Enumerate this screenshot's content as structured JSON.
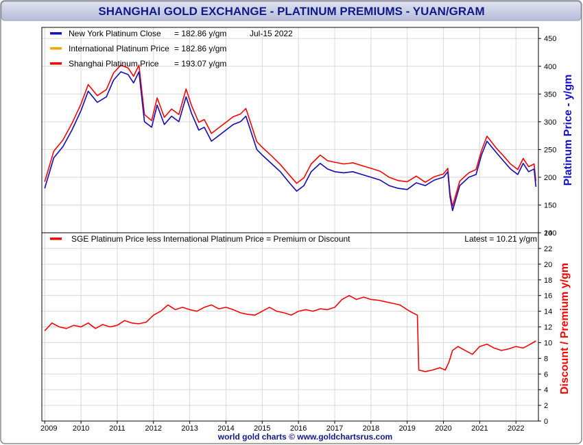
{
  "title": "SHANGHAI GOLD EXCHANGE - PLATINUM PREMIUMS - YUAN/GRAM",
  "footer": "world gold charts © www.goldchartsrus.com",
  "colors": {
    "title_bg": "#c9cde3",
    "title_text": "#0d1a8c",
    "ny": "#1010c8",
    "intl": "#f0a800",
    "sge": "#ff0000",
    "grid": "#d8d8d8"
  },
  "chart_data": [
    {
      "type": "line",
      "panel": "top",
      "ylabel": "Platinum Price - y/gm",
      "ylim": [
        100,
        470
      ],
      "yticks": [
        "100",
        "150",
        "200",
        "250",
        "300",
        "350",
        "400",
        "450"
      ],
      "xlabels": [
        "2009",
        "2010",
        "2011",
        "2012",
        "2013",
        "2014",
        "2015",
        "2016",
        "2017",
        "2018",
        "2019",
        "2020",
        "2021",
        "2022"
      ],
      "xlim": [
        2008.92,
        2022.62
      ],
      "legend": [
        {
          "label": "New York Platinum Close",
          "value": "= 182.86 y/gm",
          "date": "Jul-15  2022",
          "color": "#1010c8"
        },
        {
          "label": "International Platinum Price",
          "value": "= 182.86 y/gm",
          "color": "#f0a800"
        },
        {
          "label": "Shanghai Platinum Price",
          "value": "= 193.07 y/gm",
          "color": "#ff0000"
        }
      ],
      "series": [
        {
          "name": "New York Platinum Close",
          "x": [
            2009.0,
            2009.25,
            2009.5,
            2009.75,
            2010.0,
            2010.2,
            2010.45,
            2010.7,
            2010.9,
            2011.1,
            2011.3,
            2011.45,
            2011.6,
            2011.75,
            2011.95,
            2012.1,
            2012.3,
            2012.5,
            2012.7,
            2012.9,
            2013.05,
            2013.25,
            2013.4,
            2013.6,
            2013.8,
            2014.0,
            2014.2,
            2014.4,
            2014.55,
            2014.7,
            2014.85,
            2015.0,
            2015.25,
            2015.5,
            2015.75,
            2015.95,
            2016.15,
            2016.35,
            2016.6,
            2016.8,
            2017.0,
            2017.25,
            2017.5,
            2017.75,
            2018.0,
            2018.25,
            2018.5,
            2018.75,
            2019.0,
            2019.25,
            2019.5,
            2019.75,
            2020.0,
            2020.12,
            2020.18,
            2020.25,
            2020.45,
            2020.7,
            2020.9,
            2021.05,
            2021.2,
            2021.45,
            2021.65,
            2021.85,
            2022.05,
            2022.2,
            2022.35,
            2022.5,
            2022.55
          ],
          "values": [
            180,
            235,
            255,
            285,
            320,
            355,
            335,
            345,
            375,
            390,
            385,
            370,
            390,
            300,
            290,
            330,
            295,
            310,
            300,
            345,
            315,
            285,
            290,
            265,
            275,
            285,
            295,
            300,
            310,
            280,
            250,
            240,
            225,
            210,
            190,
            175,
            185,
            210,
            225,
            215,
            210,
            208,
            210,
            205,
            200,
            195,
            185,
            180,
            178,
            190,
            185,
            195,
            200,
            210,
            165,
            140,
            185,
            200,
            205,
            240,
            265,
            245,
            230,
            215,
            205,
            225,
            210,
            215,
            182.86
          ]
        },
        {
          "name": "International Platinum Price",
          "x": [
            2009.0,
            2009.25,
            2009.5,
            2009.75,
            2010.0,
            2010.2,
            2010.45,
            2010.7,
            2010.9,
            2011.1,
            2011.3,
            2011.45,
            2011.6,
            2011.75,
            2011.95,
            2012.1,
            2012.3,
            2012.5,
            2012.7,
            2012.9,
            2013.05,
            2013.25,
            2013.4,
            2013.6,
            2013.8,
            2014.0,
            2014.2,
            2014.4,
            2014.55,
            2014.7,
            2014.85,
            2015.0,
            2015.25,
            2015.5,
            2015.75,
            2015.95,
            2016.15,
            2016.35,
            2016.6,
            2016.8,
            2017.0,
            2017.25,
            2017.5,
            2017.75,
            2018.0,
            2018.25,
            2018.5,
            2018.75,
            2019.0,
            2019.25,
            2019.5,
            2019.75,
            2020.0,
            2020.12,
            2020.18,
            2020.25,
            2020.45,
            2020.7,
            2020.9,
            2021.05,
            2021.2,
            2021.45,
            2021.65,
            2021.85,
            2022.05,
            2022.2,
            2022.35,
            2022.5,
            2022.55
          ],
          "values": [
            180,
            235,
            255,
            285,
            320,
            355,
            335,
            345,
            375,
            390,
            385,
            370,
            390,
            300,
            290,
            330,
            295,
            310,
            300,
            345,
            315,
            285,
            290,
            265,
            275,
            285,
            295,
            300,
            310,
            280,
            250,
            240,
            225,
            210,
            190,
            175,
            185,
            210,
            225,
            215,
            210,
            208,
            210,
            205,
            200,
            195,
            185,
            180,
            178,
            190,
            185,
            195,
            200,
            210,
            165,
            140,
            185,
            200,
            205,
            240,
            265,
            245,
            230,
            215,
            205,
            225,
            210,
            215,
            182.86
          ]
        },
        {
          "name": "Shanghai Platinum Price",
          "x": [
            2009.0,
            2009.25,
            2009.5,
            2009.75,
            2010.0,
            2010.2,
            2010.45,
            2010.7,
            2010.9,
            2011.1,
            2011.3,
            2011.45,
            2011.6,
            2011.75,
            2011.95,
            2012.1,
            2012.3,
            2012.5,
            2012.7,
            2012.9,
            2013.05,
            2013.25,
            2013.4,
            2013.6,
            2013.8,
            2014.0,
            2014.2,
            2014.4,
            2014.55,
            2014.7,
            2014.85,
            2015.0,
            2015.25,
            2015.5,
            2015.75,
            2015.95,
            2016.15,
            2016.35,
            2016.6,
            2016.8,
            2017.0,
            2017.25,
            2017.5,
            2017.75,
            2018.0,
            2018.25,
            2018.5,
            2018.75,
            2019.0,
            2019.25,
            2019.5,
            2019.75,
            2020.0,
            2020.12,
            2020.18,
            2020.25,
            2020.45,
            2020.7,
            2020.9,
            2021.05,
            2021.2,
            2021.45,
            2021.65,
            2021.85,
            2022.05,
            2022.2,
            2022.35,
            2022.5,
            2022.55
          ],
          "values": [
            192,
            247,
            267,
            297,
            332,
            367,
            347,
            358,
            388,
            402,
            397,
            382,
            402,
            313,
            302,
            343,
            308,
            323,
            313,
            359,
            329,
            299,
            304,
            279,
            289,
            299,
            309,
            314,
            324,
            294,
            264,
            254,
            239,
            223,
            204,
            189,
            199,
            224,
            240,
            230,
            227,
            224,
            226,
            221,
            216,
            211,
            200,
            194,
            192,
            202,
            191,
            201,
            206,
            216,
            172,
            148,
            193,
            208,
            214,
            248,
            274,
            253,
            239,
            224,
            214,
            234,
            219,
            224,
            193.07
          ]
        }
      ]
    },
    {
      "type": "line",
      "panel": "bottom",
      "ylabel": "Discount / Premium y/gm",
      "ylim": [
        0,
        24
      ],
      "yticks": [
        "0",
        "2",
        "4",
        "6",
        "8",
        "10",
        "12",
        "14",
        "16",
        "18",
        "20",
        "22",
        "24"
      ],
      "xlim": [
        2008.92,
        2022.62
      ],
      "legend": [
        {
          "label": "SGE Platinum Price less International Platinum Price = Premium or Discount",
          "color": "#ff0000"
        }
      ],
      "latest": "Latest = 10.21 y/gm",
      "series": [
        {
          "name": "SGE Platinum Price less International Platinum Price = Premium or Discount",
          "x": [
            2009.0,
            2009.2,
            2009.4,
            2009.6,
            2009.8,
            2010.0,
            2010.2,
            2010.4,
            2010.6,
            2010.8,
            2011.0,
            2011.2,
            2011.4,
            2011.6,
            2011.8,
            2012.0,
            2012.2,
            2012.4,
            2012.6,
            2012.8,
            2013.0,
            2013.2,
            2013.4,
            2013.6,
            2013.8,
            2014.0,
            2014.2,
            2014.4,
            2014.6,
            2014.8,
            2015.0,
            2015.2,
            2015.4,
            2015.6,
            2015.8,
            2016.0,
            2016.2,
            2016.4,
            2016.6,
            2016.8,
            2017.0,
            2017.2,
            2017.4,
            2017.6,
            2017.8,
            2018.0,
            2018.2,
            2018.4,
            2018.6,
            2018.8,
            2019.0,
            2019.15,
            2019.28,
            2019.32,
            2019.5,
            2019.7,
            2019.9,
            2020.05,
            2020.15,
            2020.25,
            2020.4,
            2020.6,
            2020.8,
            2021.0,
            2021.2,
            2021.4,
            2021.6,
            2021.8,
            2022.0,
            2022.2,
            2022.4,
            2022.55
          ],
          "values": [
            11.5,
            12.5,
            12.0,
            11.8,
            12.2,
            12.0,
            12.5,
            11.8,
            12.3,
            12.0,
            12.2,
            12.8,
            12.5,
            12.4,
            12.6,
            13.5,
            14.0,
            14.8,
            14.2,
            14.5,
            14.2,
            14.0,
            14.5,
            14.8,
            14.3,
            14.5,
            14.2,
            13.8,
            13.6,
            13.5,
            14.0,
            14.5,
            14.0,
            13.8,
            13.5,
            14.0,
            14.2,
            14.0,
            14.3,
            14.2,
            14.5,
            15.5,
            16.0,
            15.5,
            15.8,
            15.5,
            15.4,
            15.2,
            15.0,
            14.8,
            14.2,
            13.8,
            13.5,
            6.5,
            6.3,
            6.5,
            6.8,
            6.5,
            7.5,
            9.0,
            9.5,
            9.0,
            8.5,
            9.5,
            9.8,
            9.3,
            9.0,
            9.2,
            9.5,
            9.3,
            9.8,
            10.21
          ]
        }
      ]
    }
  ]
}
